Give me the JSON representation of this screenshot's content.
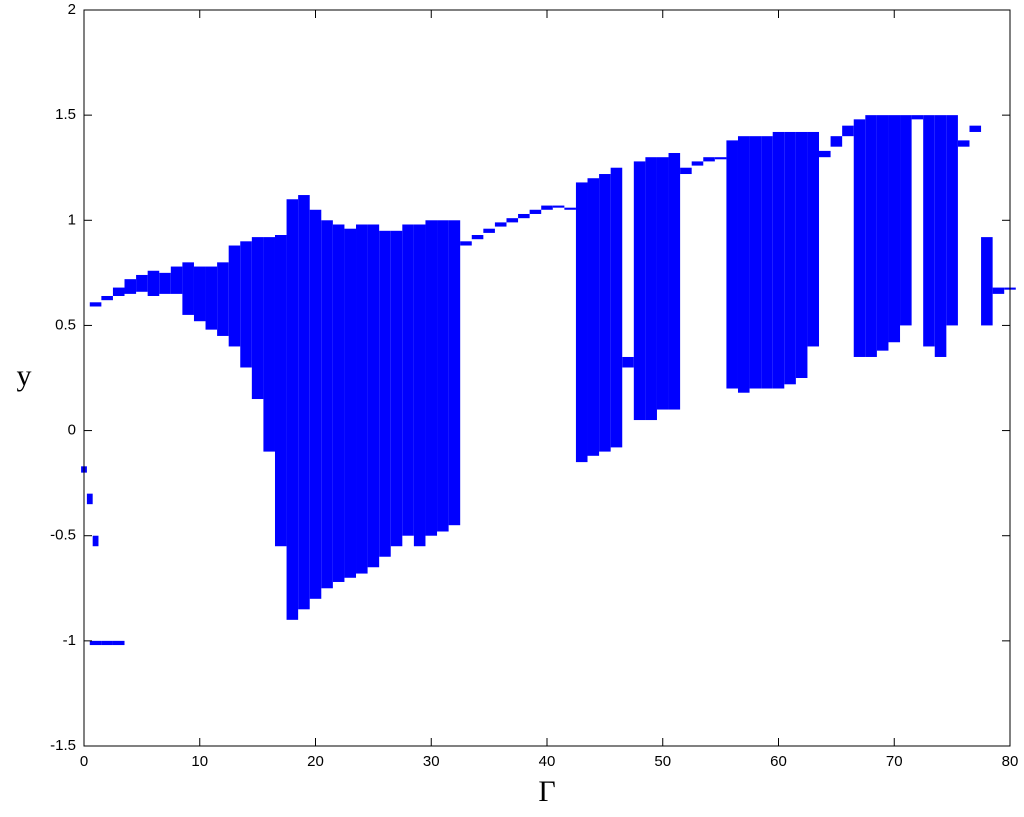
{
  "chart_data": {
    "type": "range",
    "x_label": "Γ",
    "y_label": "y",
    "xlim": [
      0,
      80
    ],
    "ylim": [
      -1.5,
      2
    ],
    "xticks": [
      0,
      10,
      20,
      30,
      40,
      50,
      60,
      70,
      80
    ],
    "yticks": [
      -1.5,
      -1,
      -0.5,
      0,
      0.5,
      1,
      1.5,
      2
    ],
    "color": "#0000ff",
    "bands": [
      {
        "x": [
          1,
          2,
          3,
          4,
          5,
          6,
          7,
          8,
          9,
          10,
          11,
          12,
          13,
          14,
          15,
          16,
          17,
          18,
          19,
          20,
          21,
          22,
          23,
          24,
          25,
          26,
          27,
          28,
          29,
          30,
          31,
          32,
          33,
          34,
          35,
          36,
          37,
          38,
          39,
          40,
          41,
          42,
          43,
          44,
          45,
          46,
          47,
          48,
          49,
          50,
          51,
          52,
          53,
          54,
          55,
          56,
          57,
          58,
          59,
          60,
          61,
          62,
          63,
          64,
          65,
          66,
          67,
          68,
          69,
          70,
          71,
          72,
          73,
          74,
          75,
          76,
          77,
          78,
          79,
          80
        ],
        "low": [
          0.59,
          0.62,
          0.64,
          0.65,
          0.66,
          0.64,
          0.65,
          0.65,
          0.55,
          0.52,
          0.48,
          0.45,
          0.4,
          0.3,
          0.15,
          -0.1,
          -0.55,
          -0.9,
          -0.85,
          -0.8,
          -0.75,
          -0.72,
          -0.7,
          -0.68,
          -0.65,
          -0.6,
          -0.55,
          -0.5,
          -0.55,
          -0.5,
          -0.48,
          -0.45,
          0.88,
          0.91,
          0.94,
          0.97,
          0.99,
          1.01,
          1.03,
          1.05,
          1.06,
          1.05,
          -0.15,
          -0.12,
          -0.1,
          -0.08,
          0.3,
          0.05,
          0.05,
          0.1,
          0.1,
          1.22,
          1.26,
          1.28,
          1.29,
          0.2,
          0.18,
          0.2,
          0.2,
          0.2,
          0.22,
          0.25,
          0.4,
          1.3,
          1.35,
          1.4,
          0.35,
          0.35,
          0.38,
          0.42,
          0.5,
          1.48,
          0.4,
          0.35,
          0.5,
          1.35,
          1.42,
          0.5,
          0.65,
          0.67
        ],
        "high": [
          0.61,
          0.64,
          0.68,
          0.72,
          0.74,
          0.76,
          0.75,
          0.78,
          0.8,
          0.78,
          0.78,
          0.8,
          0.88,
          0.9,
          0.92,
          0.92,
          0.93,
          1.1,
          1.12,
          1.05,
          1.0,
          0.98,
          0.96,
          0.98,
          0.98,
          0.95,
          0.95,
          0.98,
          0.98,
          1.0,
          1.0,
          1.0,
          0.9,
          0.93,
          0.96,
          0.99,
          1.01,
          1.03,
          1.05,
          1.07,
          1.07,
          1.06,
          1.18,
          1.2,
          1.22,
          1.25,
          0.35,
          1.28,
          1.3,
          1.3,
          1.32,
          1.25,
          1.28,
          1.3,
          1.3,
          1.38,
          1.4,
          1.4,
          1.4,
          1.42,
          1.42,
          1.42,
          1.42,
          1.33,
          1.4,
          1.45,
          1.48,
          1.5,
          1.5,
          1.5,
          1.5,
          1.5,
          1.5,
          1.5,
          1.5,
          1.38,
          1.45,
          0.92,
          0.68,
          0.68
        ]
      },
      {
        "x": [
          0,
          0.5,
          1
        ],
        "low": [
          -0.2,
          -0.35,
          -0.55
        ],
        "high": [
          -0.17,
          -0.3,
          -0.5
        ]
      },
      {
        "x": [
          1,
          2,
          3
        ],
        "low": [
          -1.02,
          -1.02,
          -1.02
        ],
        "high": [
          -1.0,
          -1.0,
          -1.0
        ]
      }
    ]
  }
}
